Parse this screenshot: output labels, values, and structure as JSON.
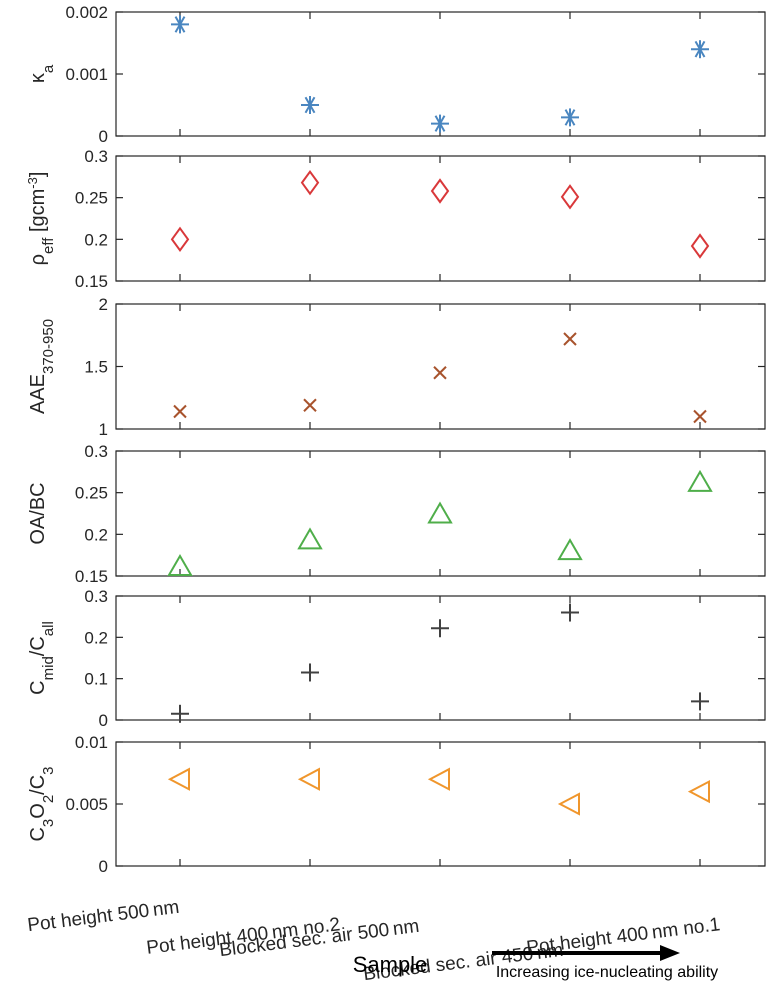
{
  "chart_data": {
    "type": "scatter",
    "x_categories": [
      "Pot height 500 nm",
      "Pot height 400 nm no.2",
      "Blocked sec. air 500 nm",
      "Blocked sec. air 450 nm",
      "Pot height 400 nm no.1"
    ],
    "xlabel": "Sample",
    "annotation": "Increasing ice-nucleating ability",
    "grid": false,
    "panels": [
      {
        "name": "kappa_a",
        "ylabel": {
          "base": "κ",
          "sub": "a"
        },
        "ylim": [
          0,
          0.002
        ],
        "yticks": [
          0,
          0.001,
          0.002
        ],
        "yticklabels": [
          "0",
          "0.001",
          "0.002"
        ],
        "marker": "asterisk",
        "color": "#4a86c0",
        "values": [
          0.0018,
          0.0005,
          0.0002,
          0.0003,
          0.0014
        ]
      },
      {
        "name": "rho_eff",
        "ylabel": {
          "base": "ρ",
          "sub": "eff",
          "rest": " [gcm",
          "sup": "-3",
          "end": "]"
        },
        "ylim": [
          0.15,
          0.3
        ],
        "yticks": [
          0.15,
          0.2,
          0.25,
          0.3
        ],
        "yticklabels": [
          "0.15",
          "0.2",
          "0.25",
          "0.3"
        ],
        "marker": "diamond",
        "color": "#d9383a",
        "values": [
          0.2,
          0.268,
          0.258,
          0.251,
          0.192
        ]
      },
      {
        "name": "AAE",
        "ylabel": {
          "base": "AAE",
          "sub": "370-950"
        },
        "ylim": [
          1,
          2
        ],
        "yticks": [
          1,
          1.5,
          2
        ],
        "yticklabels": [
          "1",
          "1.5",
          "2"
        ],
        "marker": "x",
        "color": "#a8532d",
        "values": [
          1.14,
          1.19,
          1.45,
          1.72,
          1.1
        ]
      },
      {
        "name": "OA_BC",
        "ylabel": {
          "base": "OA/BC"
        },
        "ylim": [
          0.15,
          0.3
        ],
        "yticks": [
          0.15,
          0.2,
          0.25,
          0.3
        ],
        "yticklabels": [
          "0.15",
          "0.2",
          "0.25",
          "0.3"
        ],
        "marker": "triangle-up",
        "color": "#4fae4a",
        "values": [
          0.162,
          0.194,
          0.225,
          0.181,
          0.263
        ]
      },
      {
        "name": "Cmid_Call",
        "ylabel": {
          "base": "C",
          "sub": "mid",
          "rest": "/C",
          "sub2": "all"
        },
        "ylim": [
          0,
          0.3
        ],
        "yticks": [
          0,
          0.1,
          0.2,
          0.3
        ],
        "yticklabels": [
          "0",
          "0.1",
          "0.2",
          "0.3"
        ],
        "marker": "plus",
        "color": "#404040",
        "values": [
          0.015,
          0.115,
          0.222,
          0.26,
          0.045
        ]
      },
      {
        "name": "C3O2_C3",
        "ylabel": {
          "base": "C",
          "sub": "3",
          "rest": "O",
          "sub2": "2",
          "rest2": "/C",
          "sub3": "3"
        },
        "ylim": [
          0,
          0.01
        ],
        "yticks": [
          0,
          0.005,
          0.01
        ],
        "yticklabels": [
          "0",
          "0.005",
          "0.01"
        ],
        "marker": "triangle-left",
        "color": "#f0962c",
        "values": [
          0.007,
          0.007,
          0.007,
          0.005,
          0.006
        ]
      }
    ]
  }
}
